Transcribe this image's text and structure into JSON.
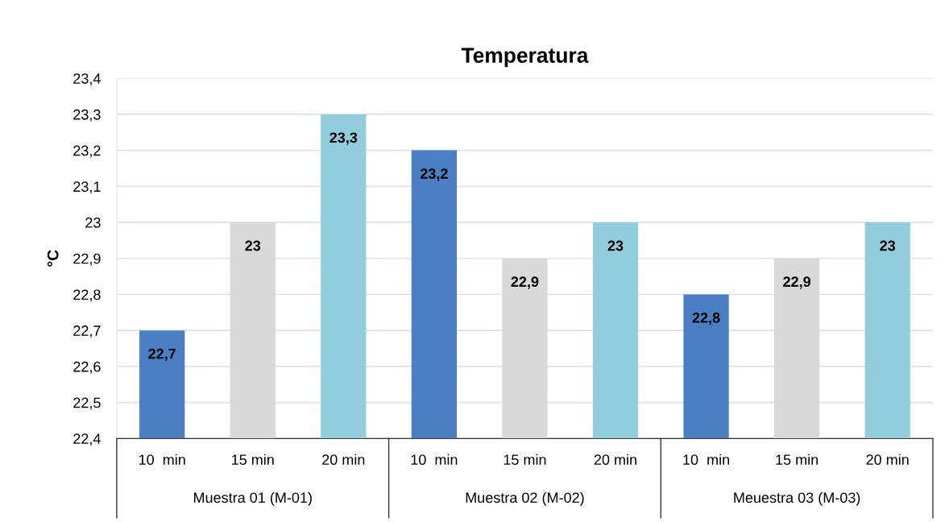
{
  "chart_data": {
    "type": "bar",
    "title": "Temperatura",
    "ylabel": "°C",
    "categories": [
      "10  min",
      "15 min",
      "20 min",
      "10  min",
      "15 min",
      "20 min",
      "10  min",
      "15 min",
      "20 min"
    ],
    "values": [
      22.7,
      23,
      23.3,
      23.2,
      22.9,
      23,
      22.8,
      22.9,
      23
    ],
    "value_labels": [
      "22,7",
      "23",
      "23,3",
      "23,2",
      "22,9",
      "23",
      "22,8",
      "22,9",
      "23"
    ],
    "colors": [
      "#4a7fc4",
      "#d9d9d9",
      "#92cddd",
      "#4a7fc4",
      "#d9d9d9",
      "#92cddd",
      "#4a7fc4",
      "#d9d9d9",
      "#92cddd"
    ],
    "annotations": [
      "Muestra 01 (M-01)",
      "Muestra 02 (M-02)",
      "Meuestra 03 (M-03)"
    ],
    "ylim": [
      22.4,
      23.4
    ],
    "yticks": [
      {
        "value": 22.4,
        "label": "22,4"
      },
      {
        "value": 22.5,
        "label": "22,5"
      },
      {
        "value": 22.6,
        "label": "22,6"
      },
      {
        "value": 22.7,
        "label": "22,7"
      },
      {
        "value": 22.8,
        "label": "22,8"
      },
      {
        "value": 22.9,
        "label": "22,9"
      },
      {
        "value": 23,
        "label": "23"
      },
      {
        "value": 23.1,
        "label": "23,1"
      },
      {
        "value": 23.2,
        "label": "23,2"
      },
      {
        "value": 23.3,
        "label": "23,3"
      },
      {
        "value": 23.4,
        "label": "23,4"
      }
    ],
    "grid": "y"
  }
}
